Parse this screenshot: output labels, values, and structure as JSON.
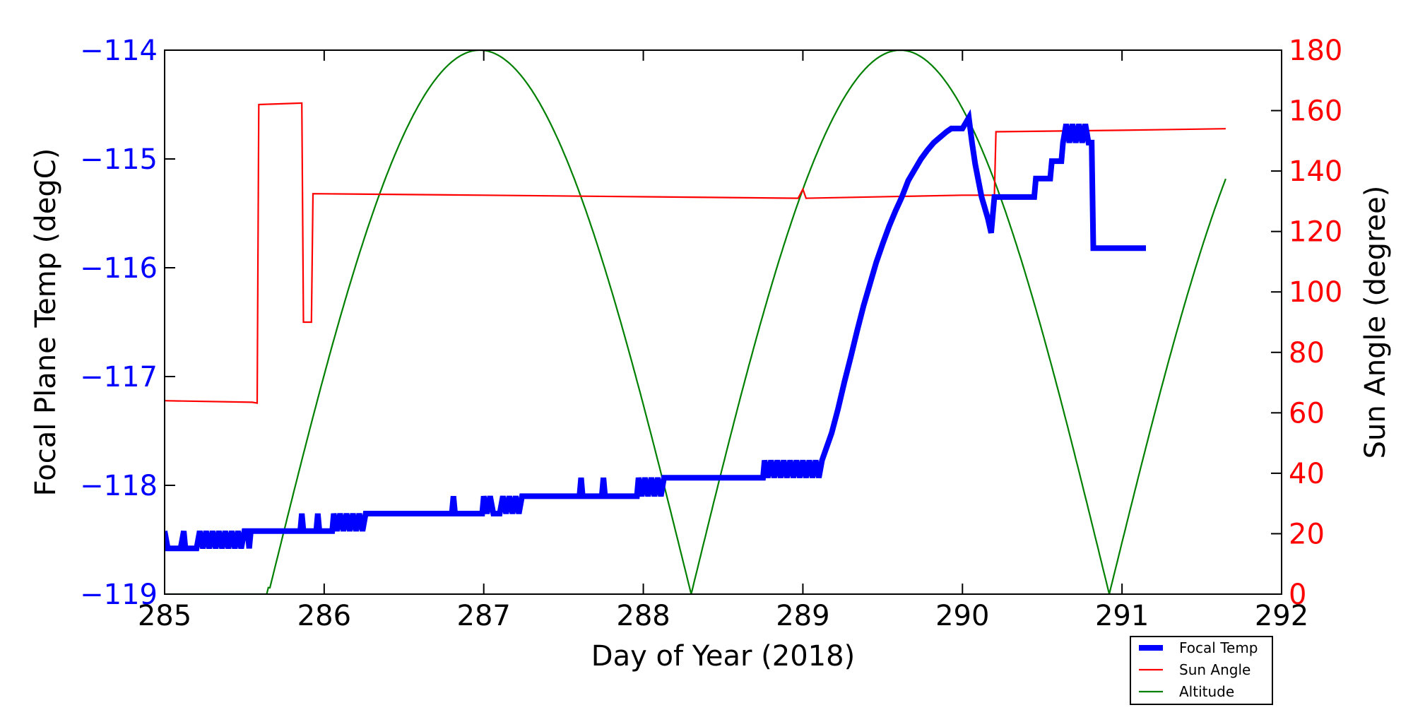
{
  "chart_data": {
    "type": "line",
    "xlabel": "Day of Year (2018)",
    "ylabel_left": "Focal Plane Temp (degC)",
    "ylabel_right": "Sun Angle (degree)",
    "xlim": [
      285,
      292
    ],
    "ylim_left": [
      -119,
      -114
    ],
    "ylim_right": [
      0,
      180
    ],
    "x_ticks": [
      285,
      286,
      287,
      288,
      289,
      290,
      291,
      292
    ],
    "y_left_ticks": [
      -119,
      -118,
      -117,
      -116,
      -115,
      -114
    ],
    "y_left_tick_labels": [
      "−119",
      "−118",
      "−117",
      "−116",
      "−115",
      "−114"
    ],
    "y_right_ticks": [
      0,
      20,
      40,
      60,
      80,
      100,
      120,
      140,
      160,
      180
    ],
    "grid": false,
    "legend_position": "bottom-right",
    "colors": {
      "focal_temp": "#0000ff",
      "sun_angle": "#ff0000",
      "altitude": "#008000",
      "left_axis": "#0000ff",
      "right_axis": "#ff0000"
    },
    "series": [
      {
        "name": "Focal Temp",
        "axis": "left",
        "points": [
          [
            285.0,
            -118.42
          ],
          [
            285.02,
            -118.58
          ],
          [
            285.1,
            -118.58
          ],
          [
            285.12,
            -118.42
          ],
          [
            285.13,
            -118.58
          ],
          [
            285.2,
            -118.58
          ],
          [
            285.22,
            -118.42
          ],
          [
            285.24,
            -118.58
          ],
          [
            285.26,
            -118.42
          ],
          [
            285.28,
            -118.58
          ],
          [
            285.3,
            -118.42
          ],
          [
            285.32,
            -118.58
          ],
          [
            285.34,
            -118.42
          ],
          [
            285.36,
            -118.58
          ],
          [
            285.38,
            -118.42
          ],
          [
            285.4,
            -118.58
          ],
          [
            285.42,
            -118.42
          ],
          [
            285.44,
            -118.58
          ],
          [
            285.46,
            -118.42
          ],
          [
            285.48,
            -118.58
          ],
          [
            285.5,
            -118.42
          ],
          [
            285.52,
            -118.42
          ],
          [
            285.53,
            -118.58
          ],
          [
            285.54,
            -118.42
          ],
          [
            285.85,
            -118.42
          ],
          [
            285.86,
            -118.26
          ],
          [
            285.87,
            -118.42
          ],
          [
            285.95,
            -118.42
          ],
          [
            285.96,
            -118.26
          ],
          [
            285.97,
            -118.42
          ],
          [
            286.05,
            -118.42
          ],
          [
            286.06,
            -118.26
          ],
          [
            286.08,
            -118.42
          ],
          [
            286.1,
            -118.26
          ],
          [
            286.12,
            -118.42
          ],
          [
            286.14,
            -118.26
          ],
          [
            286.16,
            -118.42
          ],
          [
            286.18,
            -118.26
          ],
          [
            286.2,
            -118.42
          ],
          [
            286.22,
            -118.26
          ],
          [
            286.24,
            -118.42
          ],
          [
            286.26,
            -118.26
          ],
          [
            286.28,
            -118.26
          ],
          [
            286.8,
            -118.26
          ],
          [
            286.81,
            -118.1
          ],
          [
            286.82,
            -118.26
          ],
          [
            286.99,
            -118.26
          ],
          [
            287.0,
            -118.1
          ],
          [
            287.02,
            -118.26
          ],
          [
            287.04,
            -118.1
          ],
          [
            287.06,
            -118.26
          ],
          [
            287.1,
            -118.26
          ],
          [
            287.12,
            -118.1
          ],
          [
            287.14,
            -118.26
          ],
          [
            287.16,
            -118.1
          ],
          [
            287.18,
            -118.26
          ],
          [
            287.2,
            -118.1
          ],
          [
            287.22,
            -118.26
          ],
          [
            287.24,
            -118.1
          ],
          [
            287.6,
            -118.1
          ],
          [
            287.61,
            -117.93
          ],
          [
            287.62,
            -118.1
          ],
          [
            287.74,
            -118.1
          ],
          [
            287.75,
            -117.93
          ],
          [
            287.76,
            -118.1
          ],
          [
            287.96,
            -118.1
          ],
          [
            287.97,
            -117.93
          ],
          [
            287.99,
            -118.1
          ],
          [
            288.01,
            -117.93
          ],
          [
            288.03,
            -118.1
          ],
          [
            288.05,
            -117.93
          ],
          [
            288.07,
            -118.1
          ],
          [
            288.09,
            -117.93
          ],
          [
            288.11,
            -118.1
          ],
          [
            288.13,
            -117.93
          ],
          [
            288.15,
            -117.93
          ],
          [
            288.75,
            -117.93
          ],
          [
            288.76,
            -117.77
          ],
          [
            288.78,
            -117.93
          ],
          [
            288.8,
            -117.77
          ],
          [
            288.82,
            -117.93
          ],
          [
            288.84,
            -117.77
          ],
          [
            288.86,
            -117.93
          ],
          [
            288.88,
            -117.77
          ],
          [
            288.9,
            -117.93
          ],
          [
            288.92,
            -117.77
          ],
          [
            288.94,
            -117.93
          ],
          [
            288.96,
            -117.77
          ],
          [
            288.98,
            -117.93
          ],
          [
            289.0,
            -117.77
          ],
          [
            289.02,
            -117.93
          ],
          [
            289.04,
            -117.77
          ],
          [
            289.06,
            -117.93
          ],
          [
            289.08,
            -117.77
          ],
          [
            289.1,
            -117.93
          ],
          [
            289.12,
            -117.77
          ],
          [
            289.18,
            -117.52
          ],
          [
            289.22,
            -117.3
          ],
          [
            289.26,
            -117.05
          ],
          [
            289.3,
            -116.82
          ],
          [
            289.34,
            -116.58
          ],
          [
            289.38,
            -116.35
          ],
          [
            289.42,
            -116.15
          ],
          [
            289.46,
            -115.95
          ],
          [
            289.5,
            -115.78
          ],
          [
            289.54,
            -115.62
          ],
          [
            289.58,
            -115.48
          ],
          [
            289.62,
            -115.35
          ],
          [
            289.66,
            -115.2
          ],
          [
            289.7,
            -115.1
          ],
          [
            289.74,
            -115.0
          ],
          [
            289.78,
            -114.92
          ],
          [
            289.82,
            -114.85
          ],
          [
            289.86,
            -114.8
          ],
          [
            289.9,
            -114.75
          ],
          [
            289.93,
            -114.72
          ],
          [
            290.0,
            -114.72
          ],
          [
            290.04,
            -114.62
          ],
          [
            290.06,
            -114.85
          ],
          [
            290.08,
            -115.05
          ],
          [
            290.1,
            -115.2
          ],
          [
            290.12,
            -115.35
          ],
          [
            290.14,
            -115.45
          ],
          [
            290.16,
            -115.55
          ],
          [
            290.18,
            -115.68
          ],
          [
            290.2,
            -115.35
          ],
          [
            290.45,
            -115.35
          ],
          [
            290.46,
            -115.18
          ],
          [
            290.55,
            -115.18
          ],
          [
            290.56,
            -115.02
          ],
          [
            290.62,
            -115.02
          ],
          [
            290.63,
            -114.85
          ],
          [
            290.65,
            -114.68
          ],
          [
            290.67,
            -114.85
          ],
          [
            290.69,
            -114.68
          ],
          [
            290.71,
            -114.85
          ],
          [
            290.73,
            -114.68
          ],
          [
            290.75,
            -114.85
          ],
          [
            290.77,
            -114.68
          ],
          [
            290.79,
            -114.85
          ],
          [
            290.81,
            -114.85
          ],
          [
            290.82,
            -115.82
          ],
          [
            291.15,
            -115.82
          ]
        ]
      },
      {
        "name": "Sun Angle",
        "axis": "right",
        "points": [
          [
            285.0,
            64
          ],
          [
            285.55,
            63.5
          ],
          [
            285.58,
            63.2
          ],
          [
            285.59,
            162
          ],
          [
            285.86,
            162.5
          ],
          [
            285.87,
            90
          ],
          [
            285.92,
            90
          ],
          [
            285.93,
            132.5
          ],
          [
            287.0,
            132
          ],
          [
            288.0,
            131.5
          ],
          [
            288.97,
            131
          ],
          [
            289.0,
            134
          ],
          [
            289.02,
            131
          ],
          [
            290.0,
            132
          ],
          [
            290.2,
            132
          ],
          [
            290.21,
            153
          ],
          [
            291.0,
            153.5
          ],
          [
            291.65,
            154
          ]
        ]
      },
      {
        "name": "Altitude",
        "axis": "right",
        "model": {
          "arches": [
            {
              "x0": 285.65,
              "x1": 288.3
            },
            {
              "x0": 288.3,
              "x1": 290.92
            },
            {
              "x0": 290.92,
              "x1": 293.56
            }
          ],
          "peak_value": 180,
          "x_start": 285.0,
          "x_end": 291.65
        }
      }
    ]
  }
}
